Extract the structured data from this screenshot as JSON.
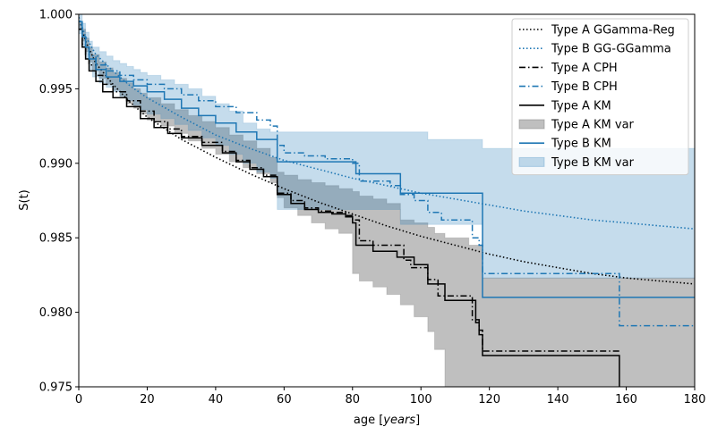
{
  "chart_data": {
    "type": "line",
    "title": "",
    "xlabel_prefix": "age [",
    "xlabel_italic": "years",
    "xlabel_suffix": "]",
    "ylabel": "S(t)",
    "xlim": [
      0,
      180
    ],
    "ylim": [
      0.975,
      1.0
    ],
    "xticks": [
      0,
      20,
      40,
      60,
      80,
      100,
      120,
      140,
      160,
      180
    ],
    "xtick_labels": [
      "0",
      "20",
      "40",
      "60",
      "80",
      "100",
      "120",
      "140",
      "160",
      "180"
    ],
    "yticks": [
      0.975,
      0.98,
      0.985,
      0.99,
      0.995,
      1.0
    ],
    "ytick_labels": [
      "0.975",
      "0.980",
      "0.985",
      "0.990",
      "0.995",
      "1.000"
    ],
    "grid": false,
    "legend_position": "top-right",
    "colors": {
      "typeA": "#000000",
      "typeB": "#1f77b4",
      "typeA_band": "#7f7f7f",
      "typeB_band": "#1f77b4"
    },
    "series": [
      {
        "name": "Type A KM var",
        "kind": "band",
        "color": "#808080",
        "opacity": 0.5,
        "x": [
          0,
          1,
          2,
          3,
          4,
          6,
          8,
          10,
          12,
          14,
          16,
          18,
          20,
          24,
          28,
          32,
          36,
          40,
          44,
          48,
          52,
          56,
          58,
          60,
          64,
          68,
          72,
          76,
          80,
          82,
          86,
          90,
          94,
          98,
          102,
          104,
          107,
          110,
          114,
          118,
          158,
          180
        ],
        "upper": [
          0.9995,
          0.999,
          0.9984,
          0.9978,
          0.9973,
          0.9968,
          0.9964,
          0.9961,
          0.9957,
          0.9954,
          0.995,
          0.9947,
          0.9944,
          0.994,
          0.9936,
          0.9932,
          0.9928,
          0.9924,
          0.9919,
          0.9915,
          0.991,
          0.9904,
          0.9894,
          0.9892,
          0.9889,
          0.9887,
          0.9885,
          0.9883,
          0.9881,
          0.9878,
          0.9876,
          0.9873,
          0.9862,
          0.986,
          0.9857,
          0.9853,
          0.985,
          0.985,
          0.9845,
          0.9823,
          0.9823,
          0.9823
        ],
        "lower": [
          0.999,
          0.9982,
          0.9975,
          0.9968,
          0.9962,
          0.9957,
          0.9953,
          0.9949,
          0.9945,
          0.994,
          0.9937,
          0.9933,
          0.9929,
          0.9925,
          0.992,
          0.9915,
          0.991,
          0.9906,
          0.9901,
          0.9897,
          0.9893,
          0.9887,
          0.9877,
          0.987,
          0.9865,
          0.986,
          0.9856,
          0.9853,
          0.9826,
          0.9821,
          0.9817,
          0.9812,
          0.9805,
          0.9797,
          0.9787,
          0.9775,
          0.975,
          0.975,
          0.975,
          0.975,
          0.975,
          0.975
        ]
      },
      {
        "name": "Type B KM var",
        "kind": "band",
        "color": "#1f77b4",
        "opacity": 0.26,
        "x": [
          0,
          1,
          2,
          3,
          4,
          6,
          8,
          10,
          12,
          14,
          16,
          18,
          20,
          24,
          28,
          32,
          36,
          40,
          44,
          48,
          52,
          56,
          58,
          60,
          64,
          68,
          72,
          76,
          80,
          82,
          86,
          90,
          94,
          98,
          102,
          104,
          107,
          110,
          114,
          118,
          158,
          180
        ],
        "upper": [
          1.0,
          0.9994,
          0.9988,
          0.9982,
          0.9978,
          0.9975,
          0.9972,
          0.9969,
          0.9967,
          0.9965,
          0.9963,
          0.9961,
          0.9959,
          0.9956,
          0.9953,
          0.995,
          0.9945,
          0.994,
          0.9935,
          0.9927,
          0.9923,
          0.9921,
          0.9921,
          0.9921,
          0.9921,
          0.9921,
          0.9921,
          0.9921,
          0.9921,
          0.9921,
          0.9921,
          0.9921,
          0.9921,
          0.9921,
          0.9916,
          0.9916,
          0.9916,
          0.9916,
          0.9916,
          0.991,
          0.991,
          0.991
        ],
        "lower": [
          0.9987,
          0.9978,
          0.997,
          0.9963,
          0.9958,
          0.9954,
          0.9951,
          0.9948,
          0.9945,
          0.9942,
          0.9939,
          0.9936,
          0.9933,
          0.993,
          0.9926,
          0.9922,
          0.9917,
          0.9912,
          0.9906,
          0.99,
          0.9894,
          0.989,
          0.9869,
          0.9869,
          0.9869,
          0.9869,
          0.9869,
          0.9869,
          0.9869,
          0.9869,
          0.9869,
          0.9869,
          0.9859,
          0.9859,
          0.9859,
          0.9859,
          0.9859,
          0.9859,
          0.9859,
          0.9823,
          0.9823,
          0.9823
        ]
      },
      {
        "name": "Type A GGamma-Reg",
        "kind": "line",
        "style": "dotted",
        "color": "#000000",
        "x": [
          0,
          2,
          5,
          10,
          15,
          20,
          30,
          40,
          50,
          60,
          70,
          80,
          90,
          100,
          110,
          120,
          130,
          140,
          150,
          160,
          170,
          180
        ],
        "y": [
          0.9998,
          0.9982,
          0.9967,
          0.9953,
          0.9941,
          0.9931,
          0.9916,
          0.9904,
          0.9893,
          0.9883,
          0.9874,
          0.9866,
          0.9858,
          0.9851,
          0.9845,
          0.9839,
          0.9834,
          0.983,
          0.9826,
          0.9823,
          0.9821,
          0.9819
        ]
      },
      {
        "name": "Type B GG-GGamma",
        "kind": "line",
        "style": "dotted",
        "color": "#1f77b4",
        "x": [
          0,
          2,
          5,
          10,
          15,
          20,
          30,
          40,
          50,
          60,
          70,
          80,
          90,
          100,
          110,
          120,
          130,
          140,
          150,
          160,
          170,
          180
        ],
        "y": [
          0.9998,
          0.9985,
          0.9973,
          0.9962,
          0.9952,
          0.9944,
          0.9931,
          0.9919,
          0.991,
          0.9902,
          0.9896,
          0.989,
          0.9885,
          0.988,
          0.9876,
          0.9872,
          0.9868,
          0.9865,
          0.9862,
          0.986,
          0.9858,
          0.9856
        ]
      },
      {
        "name": "Type A CPH",
        "kind": "step",
        "style": "dashdot",
        "color": "#000000",
        "x": [
          0,
          1,
          2,
          3,
          5,
          7,
          10,
          14,
          18,
          22,
          26,
          30,
          36,
          42,
          46,
          50,
          54,
          58,
          62,
          66,
          70,
          74,
          78,
          80,
          82,
          86,
          95,
          97,
          102,
          105,
          115,
          117,
          118,
          158
        ],
        "y": [
          0.999,
          0.998,
          0.9973,
          0.9966,
          0.9959,
          0.9953,
          0.9948,
          0.9942,
          0.9935,
          0.9928,
          0.9923,
          0.9918,
          0.9914,
          0.9908,
          0.9902,
          0.9897,
          0.9892,
          0.988,
          0.9875,
          0.987,
          0.9868,
          0.9867,
          0.9865,
          0.9862,
          0.9848,
          0.9845,
          0.9835,
          0.983,
          0.9822,
          0.9811,
          0.9795,
          0.9788,
          0.9774,
          0.9774
        ]
      },
      {
        "name": "Type B CPH",
        "kind": "step",
        "style": "dashdot",
        "color": "#1f77b4",
        "x": [
          0,
          1,
          2,
          3,
          5,
          8,
          12,
          16,
          20,
          25,
          30,
          35,
          40,
          46,
          52,
          56,
          58,
          60,
          66,
          72,
          80,
          82,
          91,
          94,
          98,
          102,
          106,
          115,
          117,
          118,
          158,
          180
        ],
        "y": [
          0.9995,
          0.9985,
          0.9978,
          0.9972,
          0.9966,
          0.9962,
          0.9959,
          0.9956,
          0.9953,
          0.995,
          0.9946,
          0.9942,
          0.9938,
          0.9934,
          0.9929,
          0.9925,
          0.9912,
          0.9907,
          0.9905,
          0.9903,
          0.99,
          0.9888,
          0.9885,
          0.9879,
          0.9875,
          0.9867,
          0.9862,
          0.985,
          0.9845,
          0.9826,
          0.9791,
          0.9791
        ]
      },
      {
        "name": "Type A KM",
        "kind": "step",
        "style": "solid",
        "color": "#000000",
        "x": [
          0,
          1,
          2,
          3,
          5,
          7,
          10,
          14,
          18,
          22,
          26,
          30,
          36,
          42,
          46,
          50,
          54,
          58,
          62,
          66,
          70,
          74,
          78,
          80,
          81,
          86,
          93,
          98,
          102,
          107,
          116,
          117,
          118,
          158
        ],
        "y": [
          0.999,
          0.9978,
          0.997,
          0.9962,
          0.9955,
          0.9948,
          0.9944,
          0.9938,
          0.993,
          0.9924,
          0.992,
          0.9917,
          0.9912,
          0.9907,
          0.9901,
          0.9896,
          0.9891,
          0.9879,
          0.9873,
          0.9869,
          0.9867,
          0.9866,
          0.9864,
          0.986,
          0.9845,
          0.9841,
          0.9837,
          0.9832,
          0.9819,
          0.9808,
          0.9793,
          0.9785,
          0.9771,
          0.9771
        ]
      },
      {
        "name": "Type B KM",
        "kind": "step",
        "style": "solid",
        "color": "#1f77b4",
        "x": [
          0,
          1,
          2,
          3,
          5,
          8,
          12,
          16,
          20,
          25,
          30,
          35,
          40,
          46,
          52,
          58,
          81,
          94,
          118,
          180
        ],
        "y": [
          0.9995,
          0.9985,
          0.9978,
          0.997,
          0.9963,
          0.9958,
          0.9955,
          0.9952,
          0.9948,
          0.9943,
          0.9937,
          0.9932,
          0.9927,
          0.9921,
          0.9916,
          0.9901,
          0.9893,
          0.988,
          0.981,
          0.981
        ]
      }
    ],
    "legend": [
      {
        "label": "Type A GGamma-Reg",
        "kind": "line",
        "style": "dotted",
        "color": "#000000"
      },
      {
        "label": "Type B GG-GGamma",
        "kind": "line",
        "style": "dotted",
        "color": "#1f77b4"
      },
      {
        "label": "Type A CPH",
        "kind": "line",
        "style": "dashdot",
        "color": "#000000"
      },
      {
        "label": "Type B CPH",
        "kind": "line",
        "style": "dashdot",
        "color": "#1f77b4"
      },
      {
        "label": "Type A KM",
        "kind": "line",
        "style": "solid",
        "color": "#000000"
      },
      {
        "label": "Type A KM var",
        "kind": "patch",
        "color": "#808080",
        "opacity": 0.5
      },
      {
        "label": "Type B KM",
        "kind": "line",
        "style": "solid",
        "color": "#1f77b4"
      },
      {
        "label": "Type B KM var",
        "kind": "patch",
        "color": "#1f77b4",
        "opacity": 0.26
      }
    ]
  }
}
